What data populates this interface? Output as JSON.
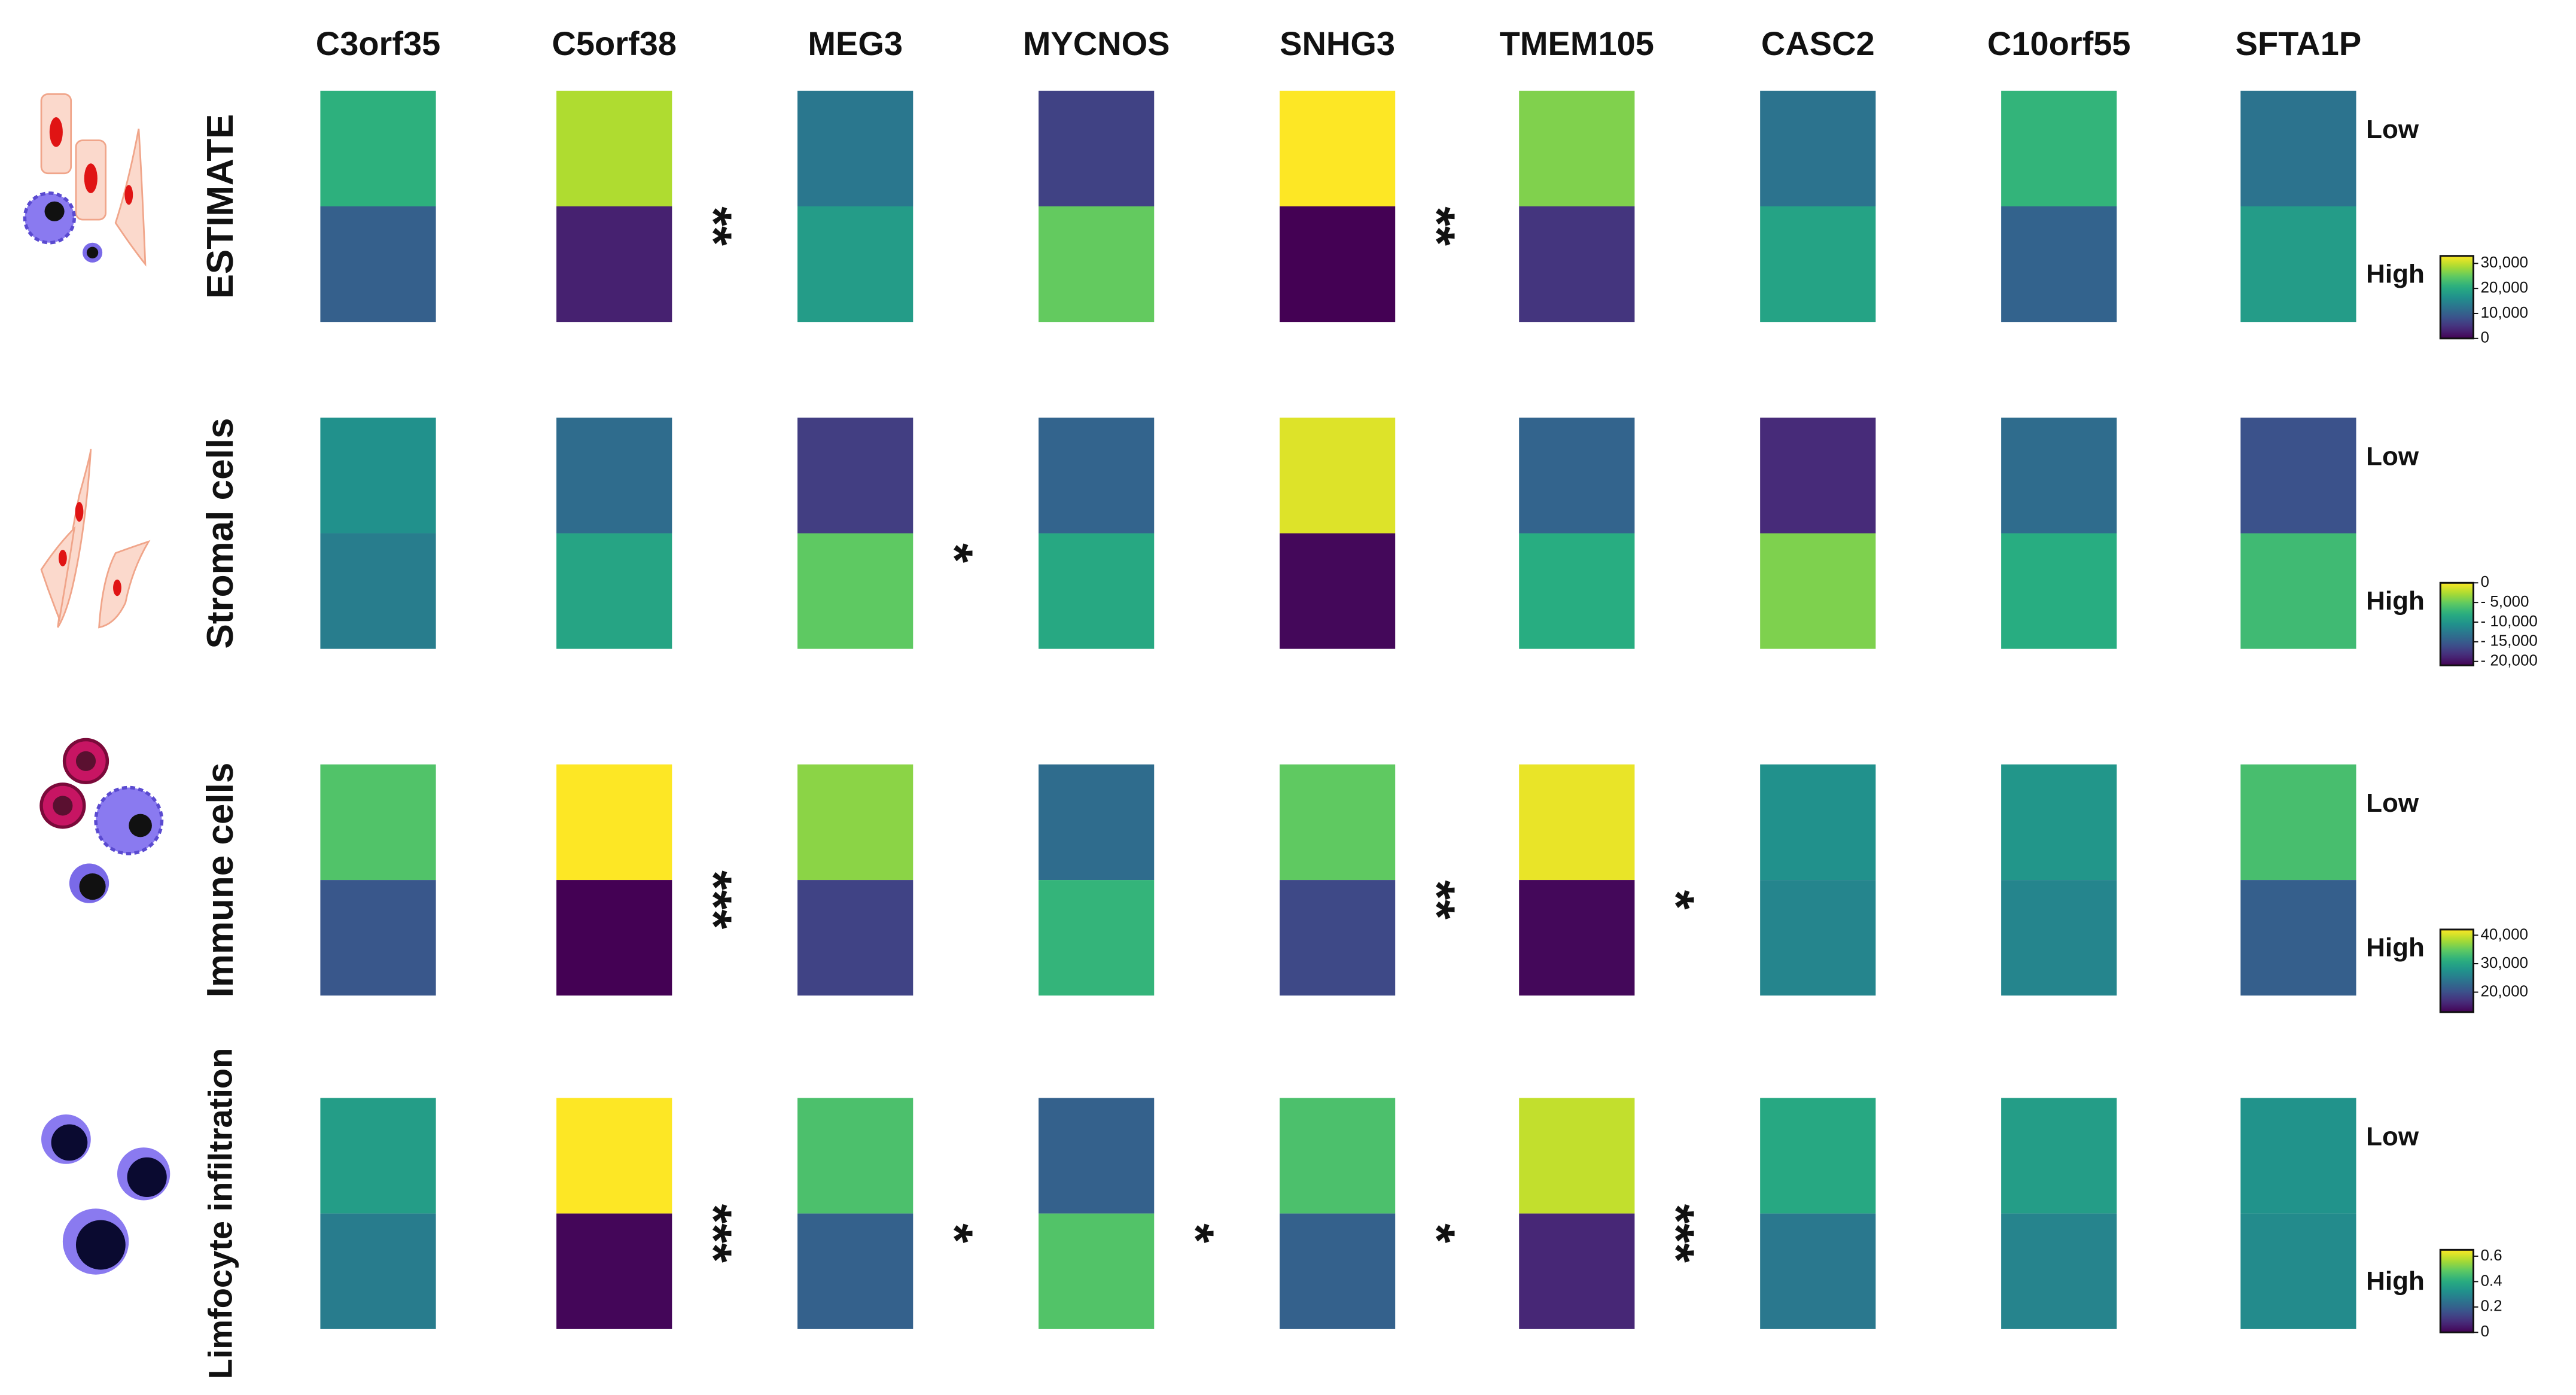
{
  "genes": [
    "C3orf35",
    "C5orf38",
    "MEG3",
    "MYCNOS",
    "SNHG3",
    "TMEM105",
    "CASC2",
    "C10orf55",
    "SFTA1P"
  ],
  "chart_data": [
    {
      "type": "heatmap",
      "title": "ESTIMATE",
      "colormap": "viridis",
      "clim": [
        0,
        33000
      ],
      "cticks": [
        0,
        {
          "value": 10000,
          "label": "10,000"
        },
        {
          "value": 20000,
          "label": "20,000"
        },
        {
          "value": 30000,
          "label": "30,000"
        }
      ],
      "series": [
        {
          "name": "Low",
          "values": [
            21000,
            29000,
            13000,
            6500,
            33000,
            26500,
            12500,
            21500,
            12500
          ]
        },
        {
          "name": "High",
          "values": [
            10000,
            3000,
            18000,
            25000,
            0,
            5000,
            19000,
            10500,
            18000
          ]
        }
      ],
      "significance": [
        null,
        "**",
        null,
        null,
        "**",
        null,
        null,
        null,
        null
      ]
    },
    {
      "type": "heatmap",
      "title": "Stromal cells",
      "colormap": "viridis",
      "clim": [
        -21000,
        0
      ],
      "cticks": [
        0,
        {
          "value": -5000,
          "label": "- 5,000"
        },
        {
          "value": -10000,
          "label": "- 10,000"
        },
        {
          "value": -15000,
          "label": "- 15,000"
        },
        {
          "value": -20000,
          "label": "- 20,000"
        }
      ],
      "series": [
        {
          "name": "Low",
          "values": [
            -10500,
            -13650,
            -17200,
            -14300,
            -1050,
            -14300,
            -18500,
            -13650,
            -15750
          ]
        },
        {
          "name": "High",
          "values": [
            -12200,
            -8800,
            -5250,
            -8400,
            -20600,
            -8000,
            -4200,
            -8000,
            -6700
          ]
        }
      ],
      "significance": [
        null,
        null,
        "*",
        null,
        null,
        null,
        null,
        null,
        null
      ]
    },
    {
      "type": "heatmap",
      "title": "Immune cells",
      "colormap": "viridis",
      "clim": [
        13000,
        42000
      ],
      "cticks": [
        {
          "value": 20000,
          "label": "20,000"
        },
        {
          "value": 30000,
          "label": "30,000"
        },
        {
          "value": 40000,
          "label": "40,000"
        }
      ],
      "series": [
        {
          "name": "Low",
          "values": [
            33900,
            42000,
            36800,
            23200,
            34800,
            41100,
            27500,
            28100,
            33300
          ]
        },
        {
          "name": "High",
          "values": [
            20800,
            13000,
            18800,
            31900,
            19400,
            13600,
            26100,
            26100,
            21700
          ]
        }
      ],
      "significance": [
        null,
        "***",
        null,
        null,
        "**",
        "*",
        null,
        null,
        null
      ]
    },
    {
      "type": "heatmap",
      "title": "Limfocyte infiltration",
      "colormap": "viridis",
      "clim": [
        0,
        0.65
      ],
      "cticks": [
        0,
        0.2,
        0.4,
        0.6
      ],
      "series": [
        {
          "name": "Low",
          "values": [
            0.36,
            0.65,
            0.46,
            0.2,
            0.46,
            0.59,
            0.39,
            0.36,
            0.33
          ]
        },
        {
          "name": "High",
          "values": [
            0.27,
            0.01,
            0.2,
            0.47,
            0.2,
            0.07,
            0.26,
            0.29,
            0.31
          ]
        }
      ],
      "significance": [
        null,
        "***",
        "*",
        "*",
        "*",
        "***",
        null,
        null,
        null
      ]
    }
  ]
}
